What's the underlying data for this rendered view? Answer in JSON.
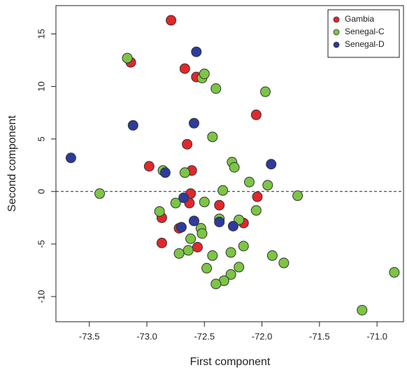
{
  "chart_data": {
    "type": "scatter",
    "x_label": "First component",
    "y_label": "Second component",
    "xlim": [
      -73.79,
      -70.77
    ],
    "ylim": [
      -12.4,
      17.7
    ],
    "xticks": [
      -73.5,
      {
        "value": -73.0,
        "label": "-73.0"
      },
      -72.5,
      {
        "value": -72.0,
        "label": "-72.0"
      },
      -71.5,
      {
        "value": -71.0,
        "label": "-71.0"
      }
    ],
    "yticks": [
      -10,
      -5,
      0,
      5,
      10,
      15
    ],
    "reference_line": 0,
    "legend": "top-right",
    "series": [
      {
        "name": "Gambia",
        "color": "#e3272b",
        "x": [
          -72.79,
          -73.14,
          -72.67,
          -72.57,
          -72.05,
          -72.65,
          -72.98,
          -72.61,
          -72.62,
          -72.63,
          -72.37,
          -72.04,
          -72.16,
          -72.87,
          -72.72,
          -72.87,
          -72.56
        ],
        "values": [
          16.3,
          12.3,
          11.7,
          10.9,
          7.3,
          4.5,
          2.4,
          2.0,
          -0.2,
          -1.1,
          -1.3,
          -0.5,
          -3.0,
          -2.5,
          -3.5,
          -4.9,
          -5.3
        ]
      },
      {
        "name": "Senegal-C",
        "color": "#7cc545",
        "x": [
          -73.17,
          -72.52,
          -72.5,
          -72.4,
          -71.97,
          -72.43,
          -72.26,
          -72.24,
          -72.86,
          -72.67,
          -73.41,
          -72.34,
          -72.11,
          -71.95,
          -71.69,
          -72.75,
          -72.5,
          -72.89,
          -72.05,
          -72.53,
          -72.52,
          -72.37,
          -72.2,
          -72.62,
          -72.64,
          -72.72,
          -72.27,
          -72.16,
          -72.43,
          -72.48,
          -72.2,
          -72.27,
          -72.33,
          -72.4,
          -71.91,
          -71.81,
          -71.13,
          -70.85
        ],
        "values": [
          12.7,
          10.8,
          11.2,
          9.8,
          9.5,
          5.2,
          2.8,
          2.3,
          2.0,
          1.8,
          -0.2,
          0.1,
          0.9,
          0.6,
          -0.4,
          -1.1,
          -1.0,
          -1.9,
          -1.8,
          -3.5,
          -4.0,
          -2.6,
          -2.7,
          -4.5,
          -5.6,
          -5.9,
          -5.8,
          -5.2,
          -6.1,
          -7.3,
          -7.2,
          -7.9,
          -8.5,
          -8.8,
          -6.1,
          -6.8,
          -11.3,
          -7.7
        ]
      },
      {
        "name": "Senegal-D",
        "color": "#2d3b9e",
        "x": [
          -72.57,
          -73.12,
          -72.59,
          -72.84,
          -73.66,
          -71.92,
          -72.68,
          -72.59,
          -72.37,
          -72.25,
          -72.7
        ],
        "values": [
          13.3,
          6.3,
          6.5,
          1.8,
          3.2,
          2.6,
          -0.6,
          -2.8,
          -2.9,
          -3.3,
          -3.4
        ]
      }
    ]
  }
}
